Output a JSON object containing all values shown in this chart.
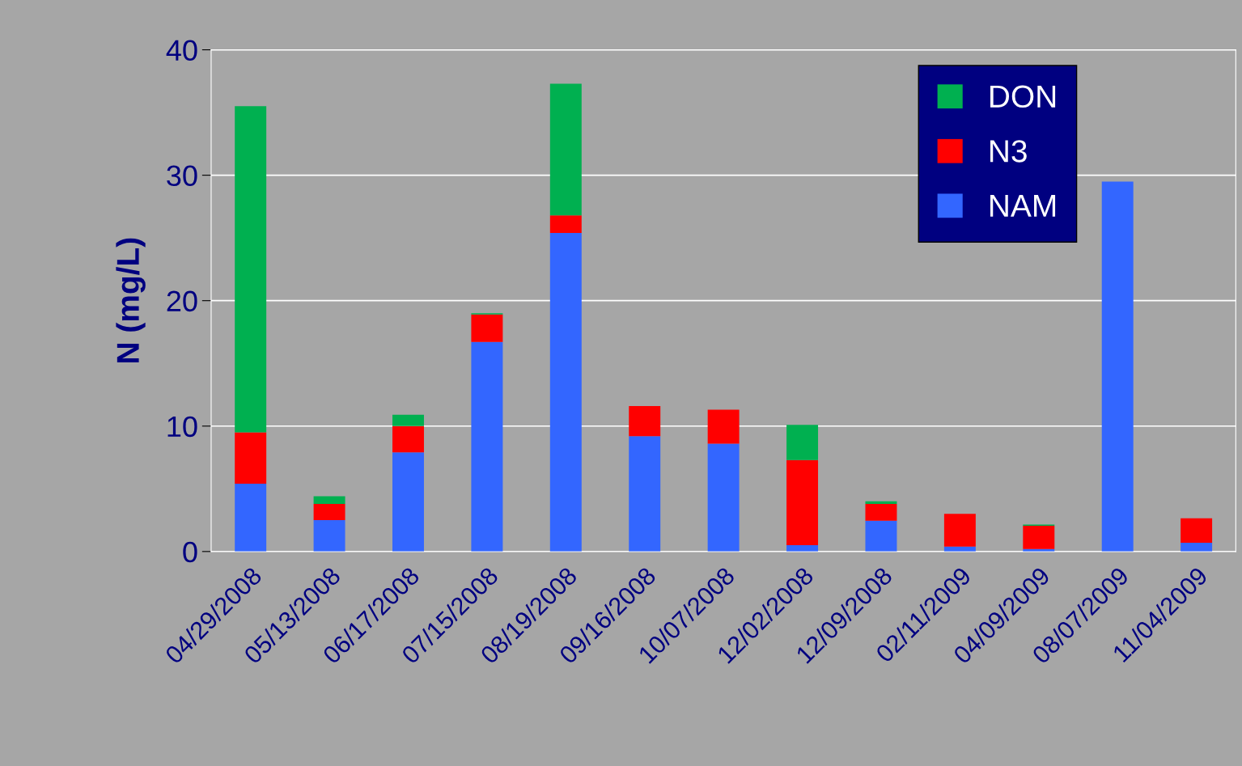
{
  "chart_data": {
    "type": "bar",
    "stacked": true,
    "ylabel": "N (mg/L)",
    "categories": [
      "04/29/2008",
      "05/13/2008",
      "06/17/2008",
      "07/15/2008",
      "08/19/2008",
      "09/16/2008",
      "10/07/2008",
      "12/02/2008",
      "12/09/2008",
      "02/11/2009",
      "04/09/2009",
      "08/07/2009",
      "11/04/2009"
    ],
    "series": [
      {
        "name": "NAM",
        "color": "#3366ff",
        "values": [
          5.4,
          2.5,
          7.9,
          16.7,
          25.4,
          9.2,
          8.6,
          0.5,
          2.45,
          0.4,
          0.2,
          29.5,
          0.7
        ]
      },
      {
        "name": "N3",
        "color": "#ff0000",
        "values": [
          4.1,
          1.3,
          2.1,
          2.2,
          1.4,
          2.4,
          2.7,
          6.8,
          1.35,
          2.6,
          1.85,
          null,
          1.95
        ]
      },
      {
        "name": "DON",
        "color": "#00b050",
        "values": [
          26.0,
          0.6,
          0.9,
          0.1,
          10.5,
          null,
          null,
          2.8,
          0.2,
          null,
          0.1,
          null,
          null
        ]
      }
    ],
    "ylim": [
      0,
      40
    ],
    "yticks": [
      0,
      10,
      20,
      30,
      40
    ],
    "grid": "y",
    "legend": "top right"
  }
}
